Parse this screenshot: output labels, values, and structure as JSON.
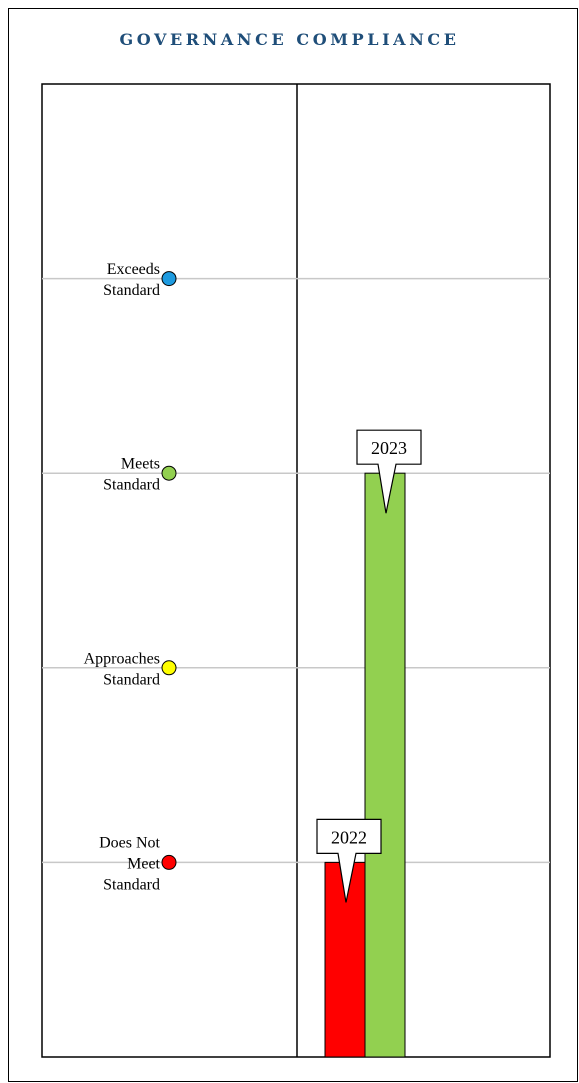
{
  "chart_data": {
    "type": "bar",
    "title": "GOVERNANCE COMPLIANCE",
    "levels": [
      {
        "label_lines": [
          "Exceeds",
          "Standard"
        ],
        "value": 4,
        "color": "#1e9be0"
      },
      {
        "label_lines": [
          "Meets",
          "Standard"
        ],
        "value": 3,
        "color": "#92d050"
      },
      {
        "label_lines": [
          "Approaches",
          "Standard"
        ],
        "value": 2,
        "color": "#ffff00"
      },
      {
        "label_lines": [
          "Does Not",
          "Meet",
          "Standard"
        ],
        "value": 1,
        "color": "#ff0000"
      }
    ],
    "ylim": [
      0,
      5
    ],
    "grid": true,
    "bars": [
      {
        "label": "2022",
        "value": 1,
        "color": "#ff0000"
      },
      {
        "label": "2023",
        "value": 3,
        "color": "#92d050"
      }
    ]
  }
}
